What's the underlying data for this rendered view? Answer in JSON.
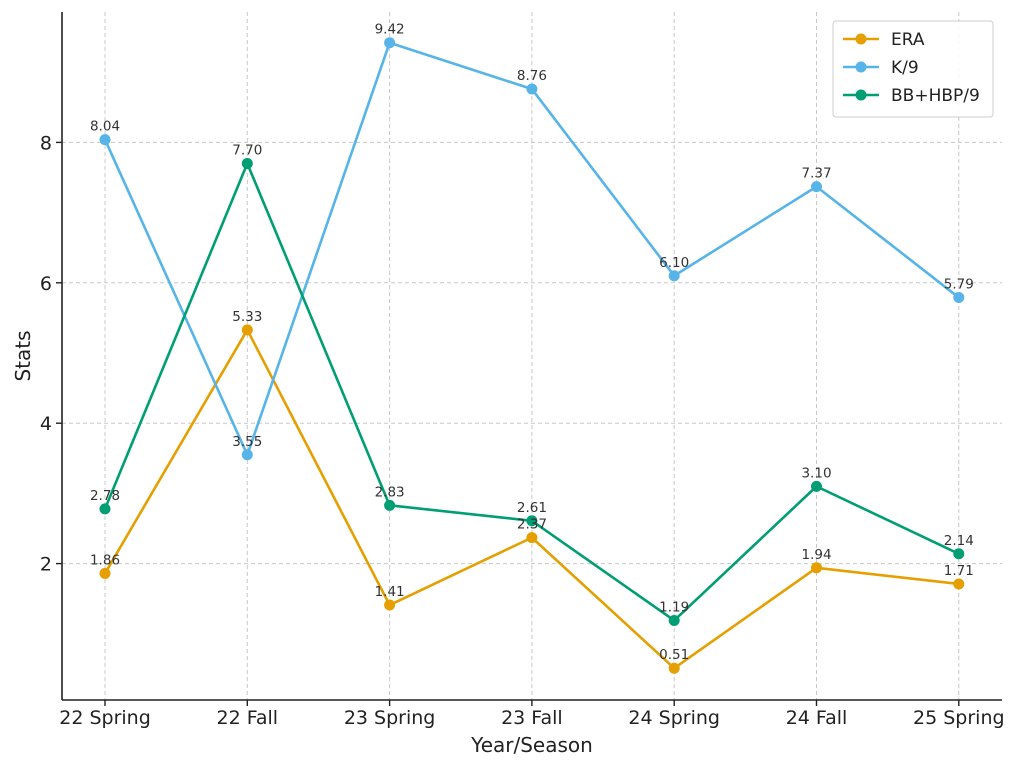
{
  "chart_data": {
    "type": "line",
    "title": "",
    "xlabel": "Year/Season",
    "ylabel": "Stats",
    "categories": [
      "22 Spring",
      "22 Fall",
      "23 Spring",
      "23 Fall",
      "24 Spring",
      "24 Fall",
      "25 Spring"
    ],
    "y_ticks": [
      2,
      4,
      6,
      8
    ],
    "ylim": [
      0.2,
      9.95
    ],
    "grid": true,
    "legend_position": "top-right",
    "series": [
      {
        "name": "ERA",
        "color": "#E69F00",
        "values": [
          1.86,
          5.33,
          1.41,
          2.37,
          0.51,
          1.94,
          1.71
        ]
      },
      {
        "name": "K/9",
        "color": "#56B4E9",
        "values": [
          8.04,
          3.55,
          9.42,
          8.76,
          6.1,
          7.37,
          5.79
        ]
      },
      {
        "name": "BB+HBP/9",
        "color": "#009E73",
        "values": [
          2.78,
          7.7,
          2.83,
          2.61,
          1.19,
          3.1,
          2.14
        ]
      }
    ]
  }
}
